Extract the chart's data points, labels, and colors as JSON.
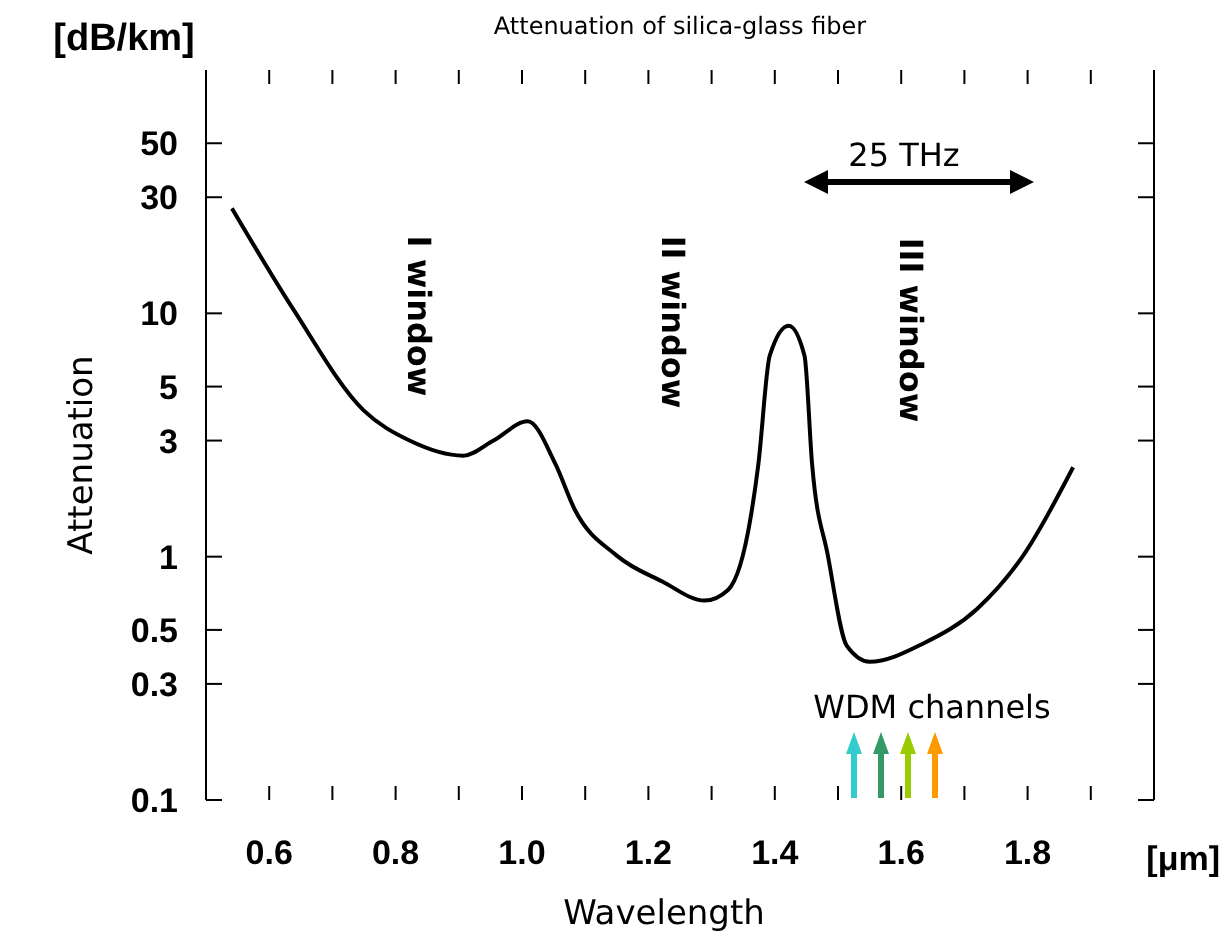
{
  "chart_data": {
    "type": "line",
    "title": "Attenuation of silica-glass fiber",
    "xlabel": "Wavelength",
    "ylabel": "Attenuation",
    "annotations": [
      "[dB/km]",
      "[μm]",
      "I window",
      "II window",
      "III window",
      "25 THz",
      "WDM channels"
    ],
    "x": [
      0.541,
      0.639,
      0.749,
      0.822,
      0.907,
      0.955,
      1.009,
      1.053,
      1.083,
      1.15,
      1.222,
      1.289,
      1.326,
      1.362,
      1.374,
      1.392,
      1.422,
      1.447,
      1.459,
      1.484,
      1.514,
      1.55,
      1.635,
      1.72,
      1.793,
      1.872
    ],
    "series": [
      {
        "color": "#000000",
        "values": [
          27,
          10.3,
          4.0,
          3.0,
          2.6,
          3.0,
          3.6,
          2.4,
          1.57,
          1.01,
          0.79,
          0.66,
          0.73,
          1.46,
          2.4,
          6.7,
          8.9,
          6.7,
          2.4,
          1.01,
          0.43,
          0.37,
          0.44,
          0.61,
          1.01,
          2.33
        ]
      }
    ],
    "log": "y",
    "xlim": [
      0.5,
      2.0
    ],
    "ylim": [
      0.1,
      100
    ],
    "xticks": [
      0.6,
      {
        "value": 0.7,
        "label": null
      },
      0.8,
      {
        "value": 0.9,
        "label": null
      },
      {
        "value": 1.0,
        "label": "1.0"
      },
      {
        "value": 1.1,
        "label": null
      },
      1.2,
      {
        "value": 1.3,
        "label": null
      },
      1.4,
      {
        "value": 1.5,
        "label": null
      },
      1.6,
      {
        "value": 1.7,
        "label": null
      },
      1.8,
      {
        "value": 1.9,
        "label": null
      }
    ],
    "yticks": [
      0.1,
      0.3,
      0.5,
      1,
      3,
      5,
      10,
      30,
      50
    ],
    "grid": false,
    "marker": "none",
    "line_style": "solid"
  }
}
